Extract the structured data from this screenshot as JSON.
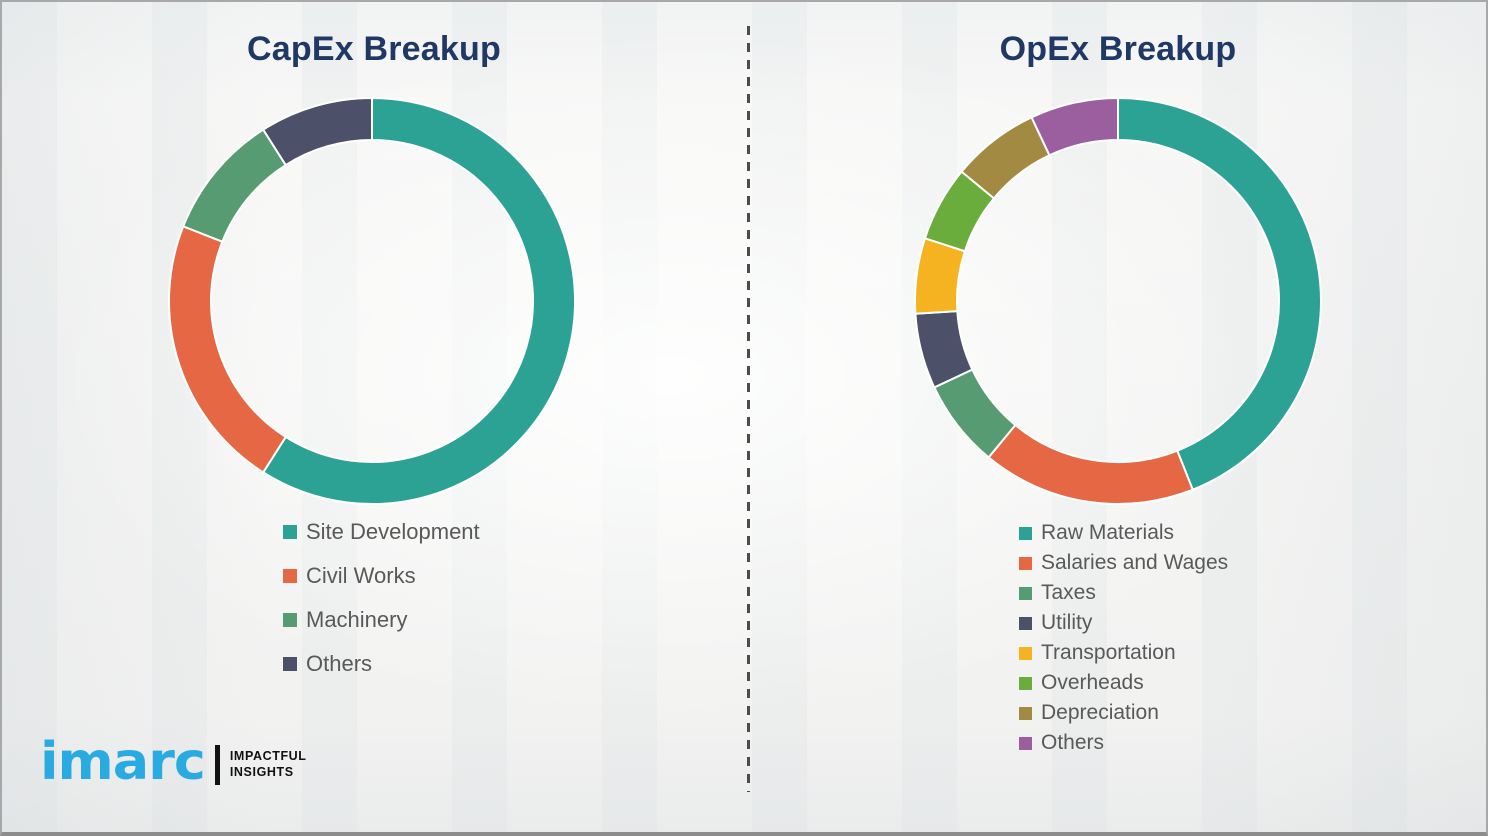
{
  "page": {
    "title_color": "#1F3864",
    "legend_text_color": "#595959",
    "divider_color": "#4C4C4C",
    "background_color": "#F5F5F4"
  },
  "chart_data": [
    {
      "type": "pie",
      "variant": "donut",
      "title": "CapEx Breakup",
      "legend_position": "bottom-left",
      "start_angle_deg": 0,
      "categories": [
        "Site Development",
        "Civil Works",
        "Machinery",
        "Others"
      ],
      "values": [
        59,
        22,
        10,
        9
      ],
      "colors": [
        "#2BA294",
        "#E56744",
        "#569B72",
        "#4D5069"
      ]
    },
    {
      "type": "pie",
      "variant": "donut",
      "title": "OpEx Breakup",
      "legend_position": "bottom-left",
      "start_angle_deg": 0,
      "categories": [
        "Raw Materials",
        "Salaries and Wages",
        "Taxes",
        "Utility",
        "Transportation",
        "Overheads",
        "Depreciation",
        "Others"
      ],
      "values": [
        44,
        17,
        7,
        6,
        6,
        6,
        7,
        7
      ],
      "colors": [
        "#2BA294",
        "#E56744",
        "#569B72",
        "#4D5069",
        "#F5B321",
        "#6AAD3D",
        "#A28A42",
        "#9B5FA0"
      ]
    }
  ],
  "logo": {
    "brand": "imarc",
    "brand_color": "#29ABE2",
    "tagline_line1": "IMPACTFUL",
    "tagline_line2": "INSIGHTS"
  }
}
